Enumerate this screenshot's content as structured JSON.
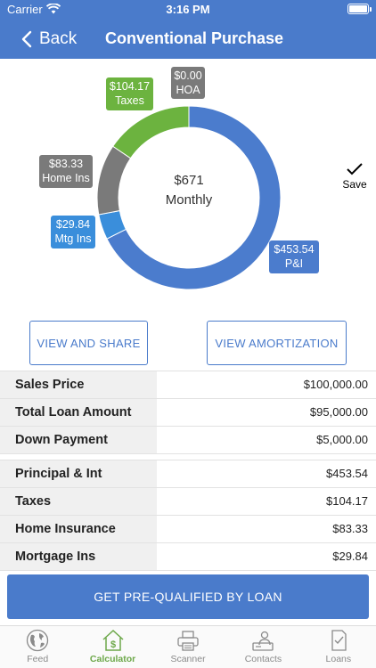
{
  "status_bar": {
    "carrier": "Carrier",
    "time": "3:16 PM"
  },
  "nav": {
    "back_label": "Back",
    "title": "Conventional Purchase"
  },
  "chart_data": {
    "type": "pie",
    "style": "donut",
    "center": {
      "amount": "$671",
      "label": "Monthly"
    },
    "slices": [
      {
        "name": "P&I",
        "value": 453.54,
        "value_label": "$453.54",
        "color": "#4b7ccd"
      },
      {
        "name": "Mtg Ins",
        "value": 29.84,
        "value_label": "$29.84",
        "color": "#3a8edb"
      },
      {
        "name": "Home Ins",
        "value": 83.33,
        "value_label": "$83.33",
        "color": "#7a7a7a"
      },
      {
        "name": "Taxes",
        "value": 104.17,
        "value_label": "$104.17",
        "color": "#6cb33f"
      },
      {
        "name": "HOA",
        "value": 0.0,
        "value_label": "$0.00",
        "color": "#7a7a7a"
      }
    ]
  },
  "save_label": "Save",
  "buttons": {
    "share": "VIEW AND SHARE",
    "amortization": "VIEW AMORTIZATION"
  },
  "table1": [
    {
      "label": "Sales Price",
      "value": "$100,000.00"
    },
    {
      "label": "Total Loan Amount",
      "value": "$95,000.00"
    },
    {
      "label": "Down Payment",
      "value": "$5,000.00"
    }
  ],
  "table2": [
    {
      "label": "Principal & Int",
      "value": "$453.54"
    },
    {
      "label": "Taxes",
      "value": "$104.17"
    },
    {
      "label": "Home Insurance",
      "value": "$83.33"
    },
    {
      "label": "Mortgage Ins",
      "value": "$29.84"
    }
  ],
  "cta_label": "GET PRE-QUALIFIED BY LOAN",
  "tabs": [
    {
      "label": "Feed",
      "icon": "globe-icon"
    },
    {
      "label": "Calculator",
      "icon": "calculator-house-icon",
      "active": true
    },
    {
      "label": "Scanner",
      "icon": "printer-icon"
    },
    {
      "label": "Contacts",
      "icon": "contacts-icon"
    },
    {
      "label": "Loans",
      "icon": "document-icon"
    }
  ],
  "colors": {
    "brand": "#4a7bcb",
    "active_tab": "#6da84a"
  }
}
